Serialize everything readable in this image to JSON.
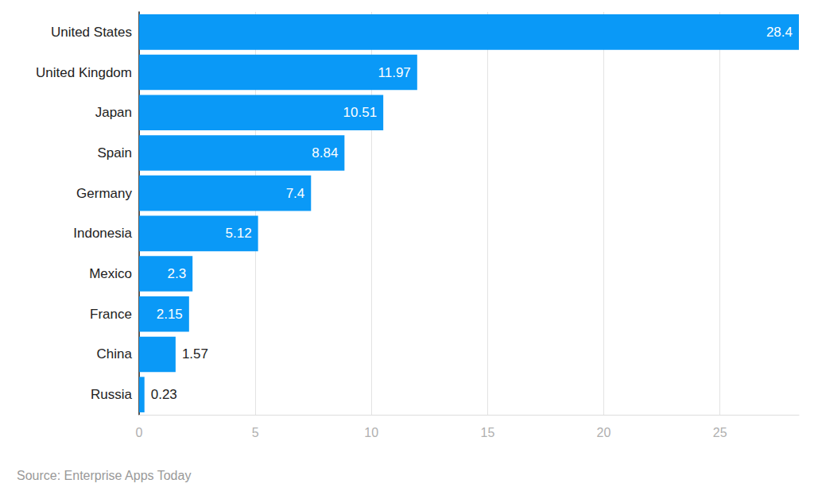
{
  "chart_data": {
    "type": "bar",
    "orientation": "horizontal",
    "categories": [
      "United States",
      "United Kingdom",
      "Japan",
      "Spain",
      "Germany",
      "Indonesia",
      "Mexico",
      "France",
      "China",
      "Russia"
    ],
    "values": [
      28.4,
      11.97,
      10.51,
      8.84,
      7.4,
      5.12,
      2.3,
      2.15,
      1.57,
      0.23
    ],
    "color": "#0a99f7",
    "xlim": [
      0,
      28.4
    ],
    "xticks": [
      0,
      5,
      10,
      15,
      20,
      25
    ],
    "grid": true,
    "data_labels": true,
    "source": "Source: Enterprise Apps Today"
  }
}
